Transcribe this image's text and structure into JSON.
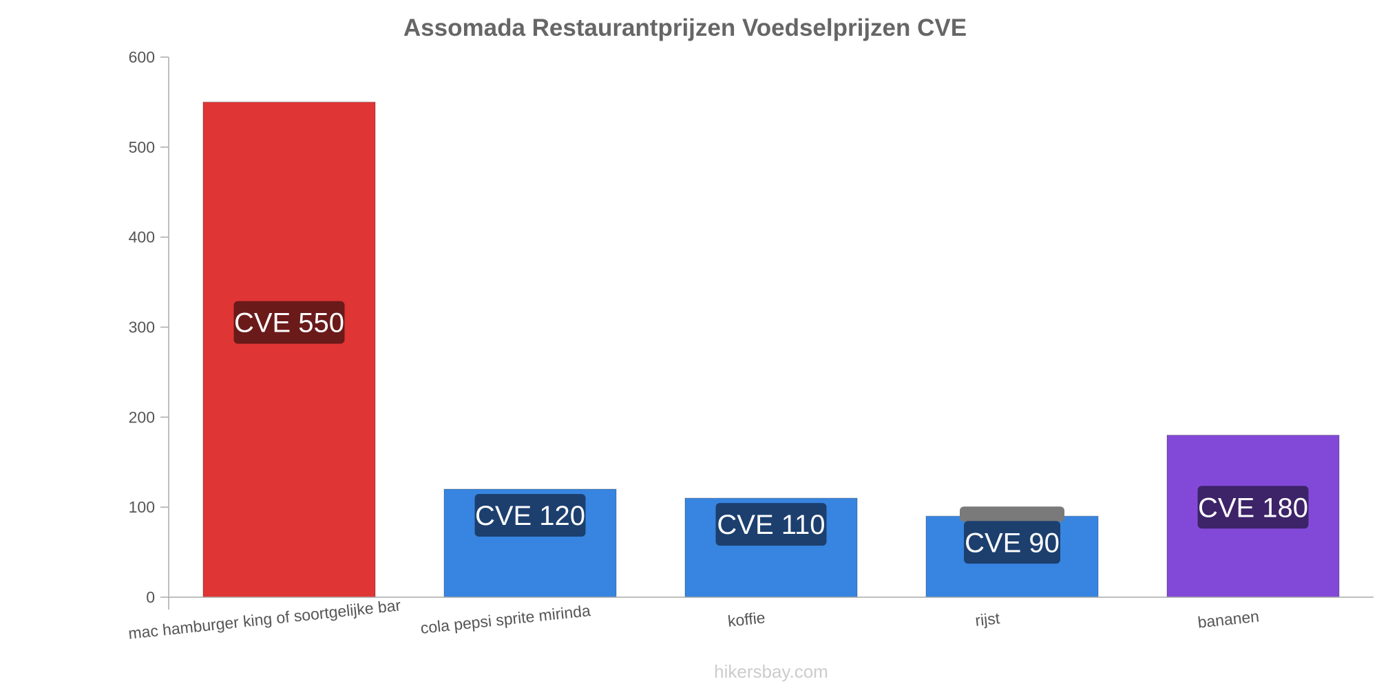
{
  "chart_data": {
    "type": "bar",
    "title": "Assomada Restaurantprijzen Voedselprijzen CVE",
    "categories": [
      "mac hamburger king of soortgelijke bar",
      "cola pepsi sprite mirinda",
      "koffie",
      "rijst",
      "bananen"
    ],
    "values": [
      550,
      120,
      110,
      90,
      180
    ],
    "data_labels": [
      "CVE 550",
      "CVE 120",
      "CVE 110",
      "CVE 90",
      "CVE 180"
    ],
    "bar_colors": [
      "#e03535",
      "#3785e0",
      "#3785e0",
      "#3785e0",
      "#8249d8"
    ],
    "label_bg_colors": [
      "#6b1a1a",
      "#1c3f6e",
      "#1c3f6e",
      "#1c3f6e",
      "#3d2368"
    ],
    "ylim": [
      0,
      600
    ],
    "yticks": [
      0,
      100,
      200,
      300,
      400,
      500,
      600
    ],
    "xlabel": "",
    "ylabel": "",
    "grid": false,
    "legend": "none"
  },
  "watermark": "hikersbay.com",
  "colors": {
    "title": "#666666",
    "axis_text": "#555555",
    "axis_line": "#aaaaaa",
    "watermark": "#cccccc"
  }
}
